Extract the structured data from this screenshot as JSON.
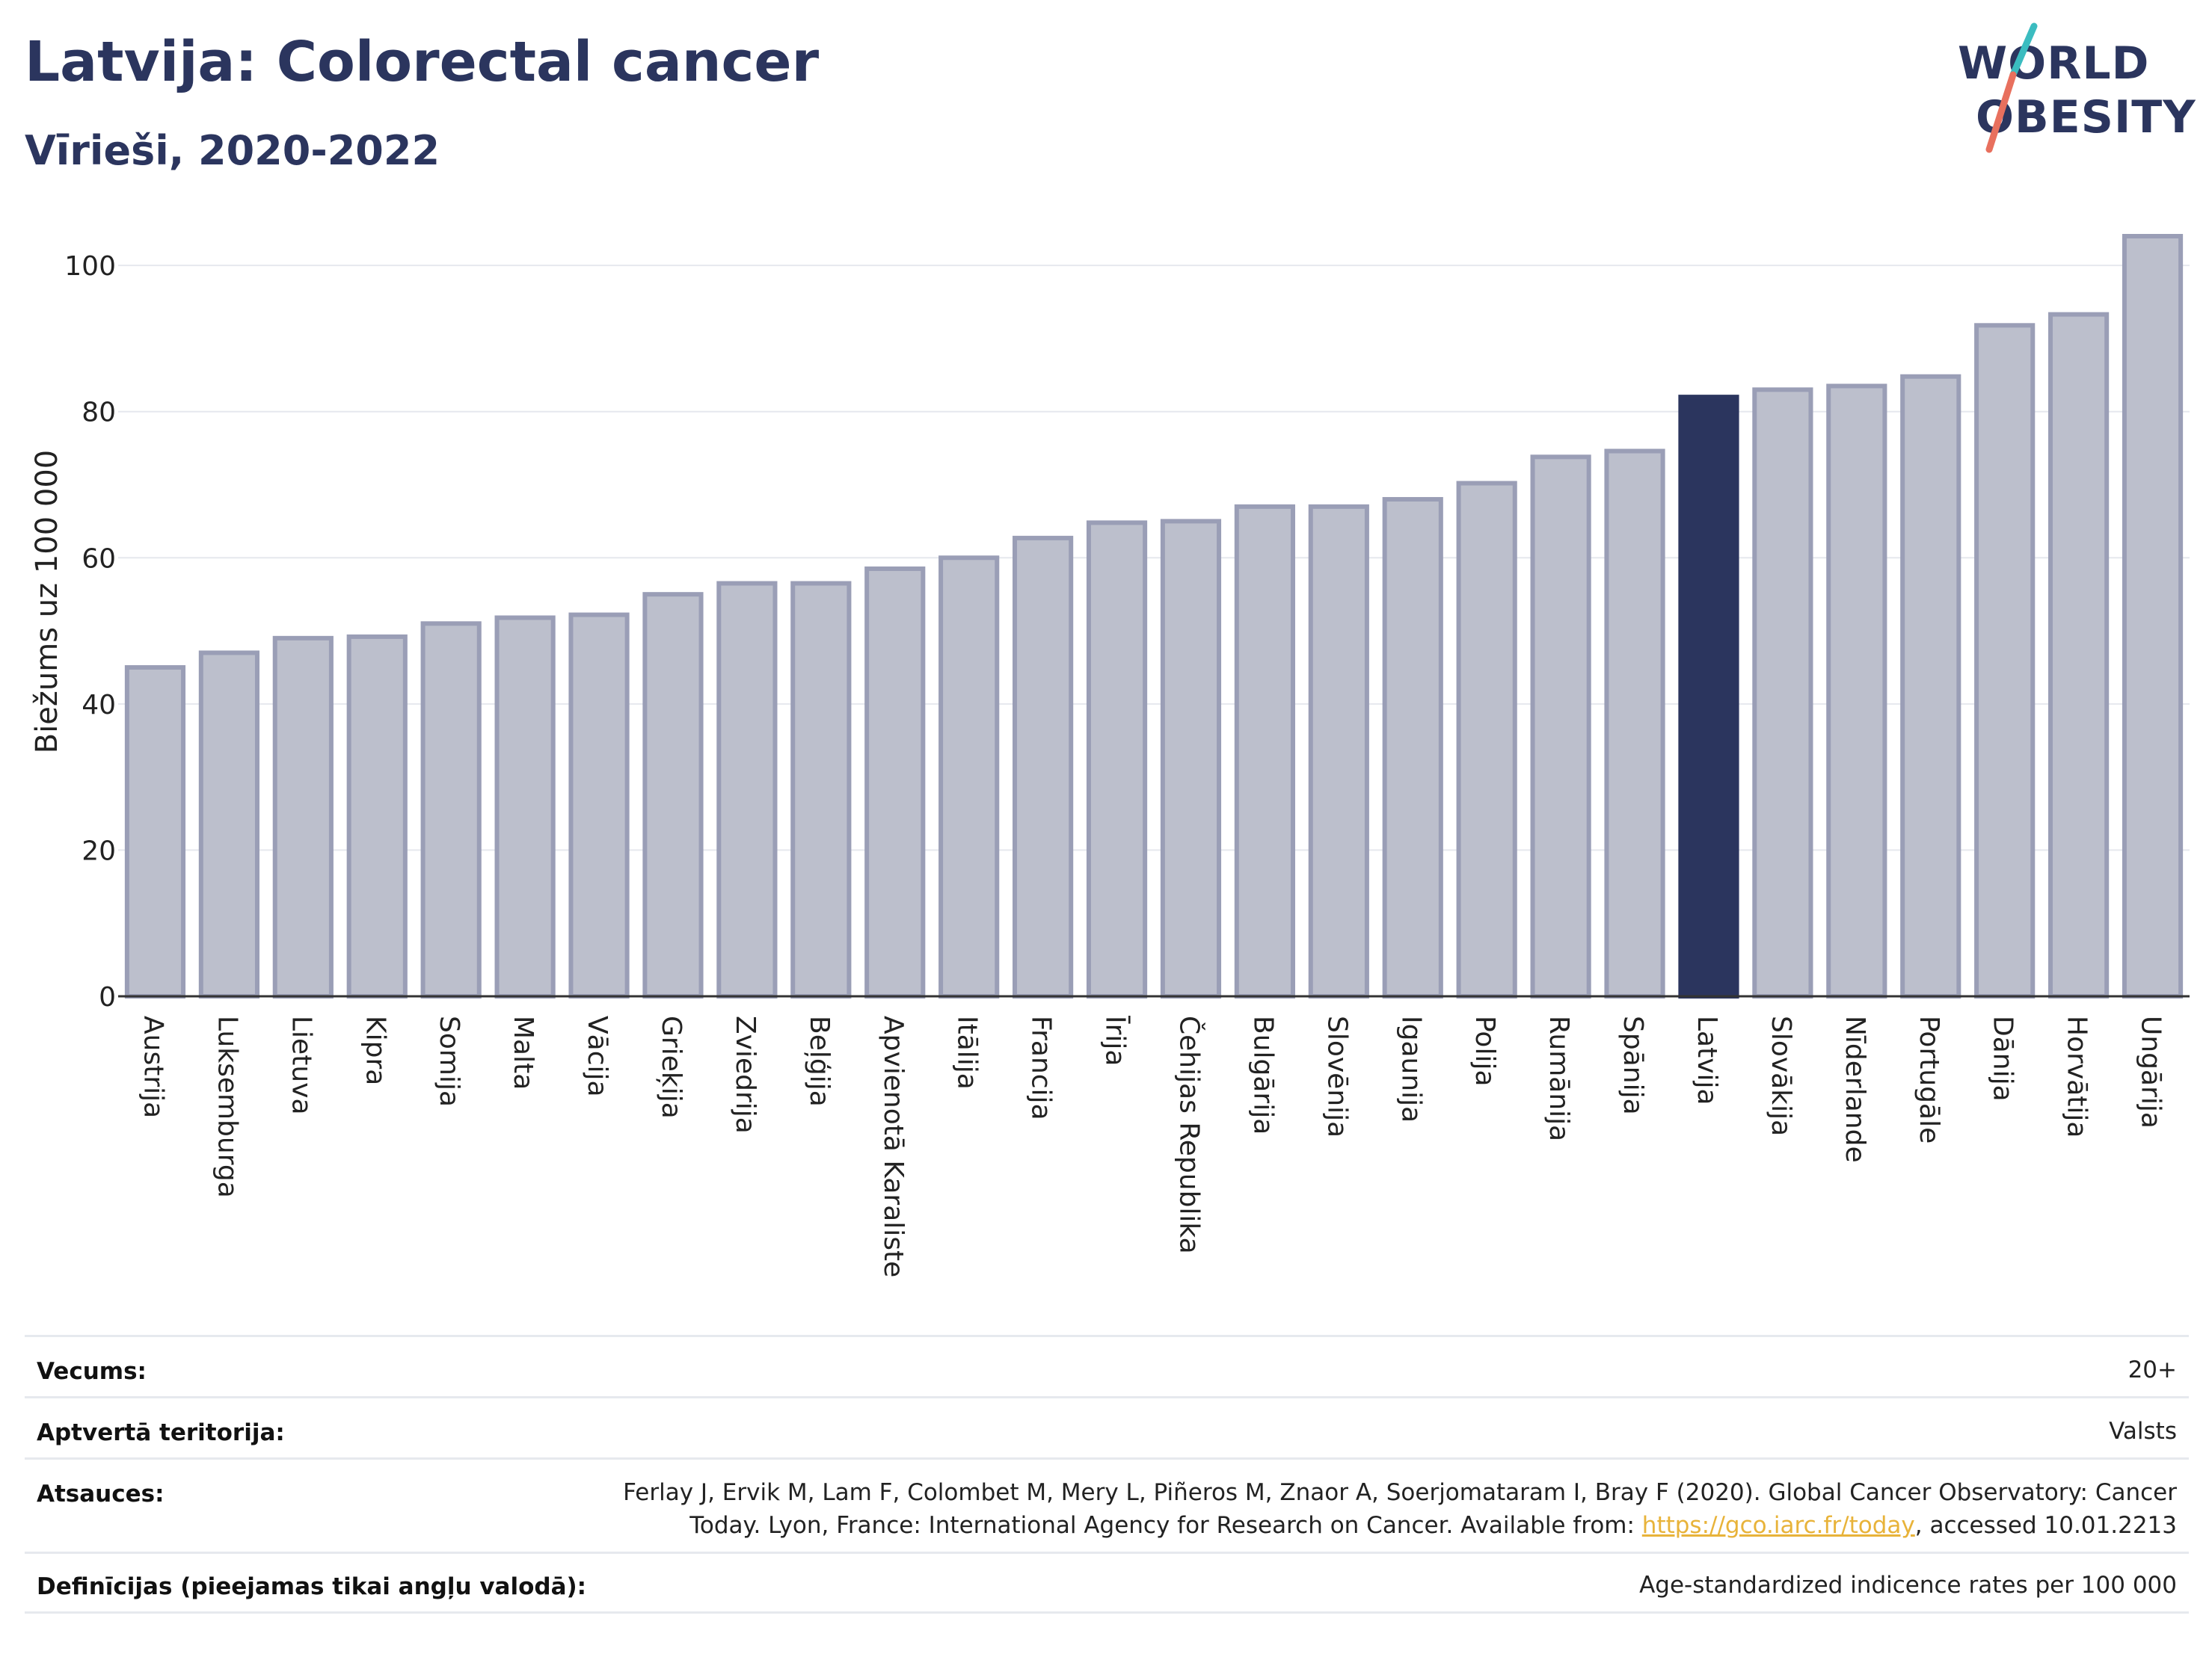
{
  "title": "Latvija: Colorectal cancer",
  "subtitle": "Vīrieši, 2020-2022",
  "logo": {
    "line1": "WORLD",
    "line2": "OBESITY",
    "colors": {
      "text": "#2b355e",
      "slash_teal": "#3bbcc0",
      "slash_coral": "#e8705e"
    }
  },
  "chart_data": {
    "type": "bar",
    "ylabel": "Biežums uz 100 000",
    "ylim": [
      0,
      104
    ],
    "yticks": [
      0,
      20,
      40,
      60,
      80,
      100
    ],
    "grid": true,
    "highlight": "Latvija",
    "colors": {
      "bar": "#bcbfcc",
      "bar_edge": "#9a9eb6",
      "highlight": "#2b355e"
    },
    "categories": [
      "Austrija",
      "Luksemburga",
      "Lietuva",
      "Kipra",
      "Somija",
      "Malta",
      "Vācija",
      "Grieķija",
      "Zviedrija",
      "Beļģija",
      "Apvienotā Karaliste",
      "Itālija",
      "Francija",
      "Īrija",
      "Čehijas Republika",
      "Bulgārija",
      "Slovēnija",
      "Igaunija",
      "Polija",
      "Rumānija",
      "Spānija",
      "Latvija",
      "Slovākija",
      "Nīderlande",
      "Portugāle",
      "Dānija",
      "Horvātija",
      "Ungārija"
    ],
    "values": [
      45,
      47,
      49,
      49.2,
      51,
      51.8,
      52.2,
      55,
      56.5,
      56.5,
      58.5,
      60,
      62.7,
      64.8,
      65,
      67,
      67,
      68,
      70.2,
      73.8,
      74.6,
      82,
      83,
      83.5,
      84.8,
      91.8,
      93.3,
      104
    ]
  },
  "meta": {
    "age_label": "Vecums:",
    "age_value": "20+",
    "territory_label": "Aptvertā teritorija:",
    "territory_value": "Valsts",
    "refs_label": "Atsauces:",
    "refs_line1": "Ferlay J, Ervik M, Lam F, Colombet M, Mery L, Piñeros M, Znaor A, Soerjomataram I, Bray F (2020). Global Cancer Observatory: Cancer",
    "refs_line2_pre": "Today. Lyon, France: International Agency for Research on Cancer. Available from: ",
    "refs_link": "https://gco.iarc.fr/today",
    "refs_line2_post": ", accessed 10.01.2213",
    "defs_label": "Definīcijas (pieejamas tikai angļu valodā):",
    "defs_value": "Age-standardized indicence rates per 100 000"
  }
}
